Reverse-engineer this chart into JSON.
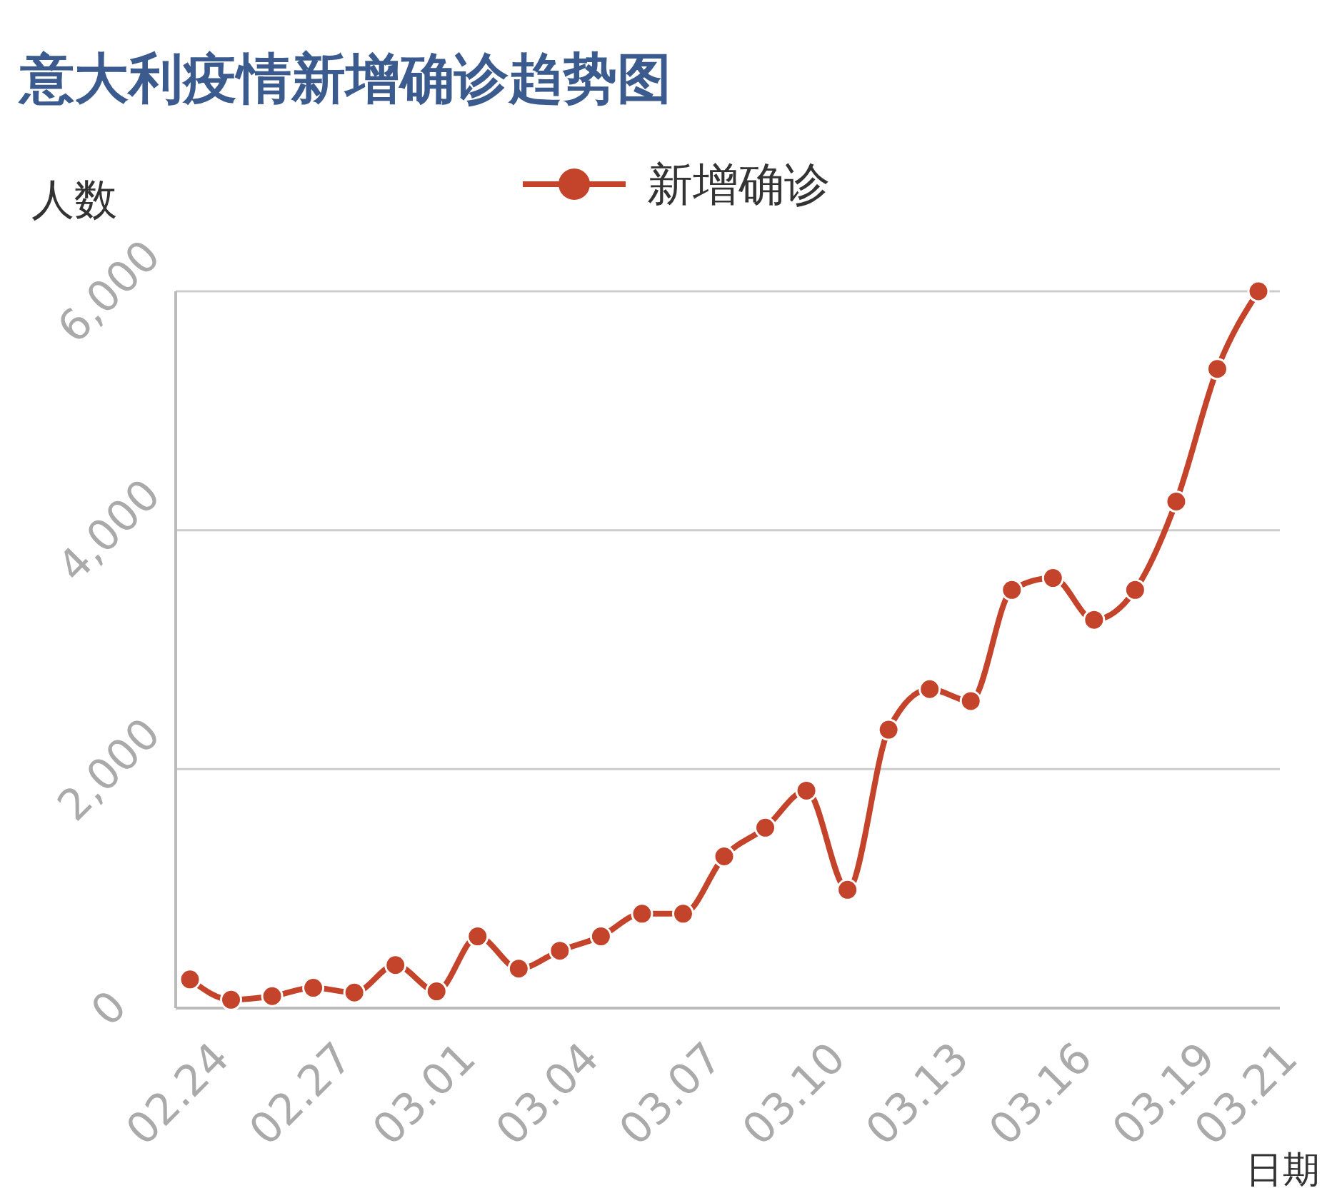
{
  "chart_data": {
    "type": "line",
    "title": "意大利疫情新增确诊趋势图",
    "ylabel": "人数",
    "xlabel": "日期",
    "categories": [
      "02.24",
      null,
      null,
      "02.27",
      null,
      null,
      "03.01",
      null,
      null,
      "03.04",
      null,
      null,
      "03.07",
      null,
      null,
      "03.10",
      null,
      null,
      "03.13",
      null,
      null,
      "03.16",
      null,
      null,
      "03.19",
      null,
      "03.21"
    ],
    "series": [
      {
        "name": "新增确诊",
        "color": "#c4432b",
        "values": [
          240,
          70,
          100,
          170,
          130,
          360,
          140,
          600,
          330,
          480,
          600,
          790,
          790,
          1270,
          1510,
          1820,
          990,
          2330,
          2670,
          2570,
          3500,
          3600,
          3250,
          3500,
          4240,
          5350,
          6000
        ]
      }
    ],
    "ylim": [
      0,
      6000
    ],
    "yticks": [
      {
        "value": 0,
        "label": "0"
      },
      {
        "value": 2000,
        "label": "2,000"
      },
      {
        "value": 4000,
        "label": "4,000"
      },
      {
        "value": 6000,
        "label": "6,000"
      }
    ],
    "grid": "y",
    "legend": "top",
    "marker": "circle",
    "line_style": "solid"
  }
}
